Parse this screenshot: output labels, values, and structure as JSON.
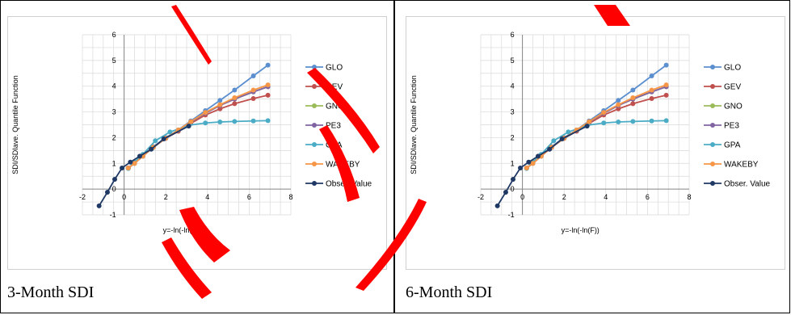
{
  "colors": {
    "GLO": "#5b8fcf",
    "GEV": "#c0504d",
    "GNO": "#9bbb59",
    "PE3": "#8064a2",
    "GPA": "#4bacc6",
    "WAKEBY": "#f79646",
    "Obser. Value": "#1f3864",
    "grid": "#d9d9d9",
    "axis": "#868686",
    "decoration": "#ff0000"
  },
  "chart_data": [
    {
      "type": "line",
      "caption": "3-Month SDI",
      "xlabel": "y=-ln(-ln(F))",
      "ylabel": "SDI/SDIave. Quantile Function",
      "xlim": [
        -2,
        8
      ],
      "ylim": [
        -1,
        6
      ],
      "x_ticks": [
        "-2",
        "0",
        "2",
        "4",
        "6",
        "8"
      ],
      "y_ticks": [
        "-1",
        "0",
        "1",
        "2",
        "3",
        "4",
        "5",
        "6"
      ],
      "grid": true,
      "legend_position": "right",
      "series": [
        {
          "name": "GLO",
          "x": [
            0.2,
            0.5,
            0.9,
            1.4,
            2.0,
            2.6,
            3.2,
            3.9,
            4.6,
            5.3,
            6.2,
            6.9
          ],
          "y": [
            0.82,
            1.02,
            1.3,
            1.65,
            2.0,
            2.3,
            2.65,
            3.05,
            3.45,
            3.85,
            4.4,
            4.82
          ]
        },
        {
          "name": "GEV",
          "x": [
            0.2,
            0.5,
            0.9,
            1.4,
            2.0,
            2.6,
            3.2,
            3.9,
            4.6,
            5.3,
            6.2,
            6.9
          ],
          "y": [
            0.82,
            1.0,
            1.28,
            1.62,
            1.97,
            2.25,
            2.55,
            2.88,
            3.12,
            3.32,
            3.52,
            3.65
          ]
        },
        {
          "name": "GNO",
          "x": [
            0.2,
            0.5,
            0.9,
            1.4,
            2.0,
            2.6,
            3.2,
            3.9,
            4.6,
            5.3,
            6.2,
            6.9
          ],
          "y": [
            0.82,
            1.0,
            1.28,
            1.63,
            1.98,
            2.28,
            2.6,
            2.95,
            3.25,
            3.5,
            3.78,
            3.98
          ]
        },
        {
          "name": "PE3",
          "x": [
            0.2,
            0.5,
            0.9,
            1.4,
            2.0,
            2.6,
            3.2,
            3.9,
            4.6,
            5.3,
            6.2,
            6.9
          ],
          "y": [
            0.82,
            1.0,
            1.28,
            1.63,
            1.98,
            2.28,
            2.6,
            2.95,
            3.25,
            3.5,
            3.78,
            3.98
          ]
        },
        {
          "name": "GPA",
          "x": [
            0.2,
            0.5,
            0.9,
            1.5,
            2.2,
            3.1,
            3.9,
            4.6,
            5.3,
            6.2,
            6.9
          ],
          "y": [
            0.8,
            1.05,
            1.35,
            1.88,
            2.22,
            2.48,
            2.57,
            2.61,
            2.63,
            2.65,
            2.66
          ]
        },
        {
          "name": "WAKEBY",
          "x": [
            0.2,
            0.5,
            0.9,
            1.4,
            2.0,
            2.6,
            3.2,
            3.9,
            4.6,
            5.3,
            6.2,
            6.9
          ],
          "y": [
            0.82,
            1.0,
            1.28,
            1.63,
            1.98,
            2.3,
            2.62,
            2.98,
            3.28,
            3.55,
            3.85,
            4.05
          ]
        },
        {
          "name": "Obser. Value",
          "x": [
            -1.2,
            -0.8,
            -0.45,
            -0.1,
            0.3,
            0.75,
            1.3,
            1.9,
            3.1
          ],
          "y": [
            -0.65,
            -0.12,
            0.38,
            0.82,
            1.05,
            1.28,
            1.55,
            1.95,
            2.45
          ]
        }
      ]
    },
    {
      "type": "line",
      "caption": "6-Month SDI",
      "xlabel": "y=-ln(-ln(F))",
      "ylabel": "SDI/SDIave. Quantile Function",
      "xlim": [
        -2,
        8
      ],
      "ylim": [
        -1,
        6
      ],
      "x_ticks": [
        "-2",
        "0",
        "2",
        "4",
        "6",
        "8"
      ],
      "y_ticks": [
        "-1",
        "0",
        "1",
        "2",
        "3",
        "4",
        "5",
        "6"
      ],
      "grid": true,
      "legend_position": "right",
      "series": [
        {
          "name": "GLO",
          "x": [
            0.2,
            0.5,
            0.9,
            1.4,
            2.0,
            2.6,
            3.2,
            3.9,
            4.6,
            5.3,
            6.2,
            6.9
          ],
          "y": [
            0.82,
            1.02,
            1.3,
            1.65,
            2.0,
            2.3,
            2.65,
            3.05,
            3.45,
            3.85,
            4.4,
            4.82
          ]
        },
        {
          "name": "GEV",
          "x": [
            0.2,
            0.5,
            0.9,
            1.4,
            2.0,
            2.6,
            3.2,
            3.9,
            4.6,
            5.3,
            6.2,
            6.9
          ],
          "y": [
            0.82,
            1.0,
            1.28,
            1.62,
            1.97,
            2.25,
            2.55,
            2.88,
            3.12,
            3.32,
            3.52,
            3.65
          ]
        },
        {
          "name": "GNO",
          "x": [
            0.2,
            0.5,
            0.9,
            1.4,
            2.0,
            2.6,
            3.2,
            3.9,
            4.6,
            5.3,
            6.2,
            6.9
          ],
          "y": [
            0.82,
            1.0,
            1.28,
            1.63,
            1.98,
            2.28,
            2.6,
            2.95,
            3.25,
            3.5,
            3.78,
            3.98
          ]
        },
        {
          "name": "PE3",
          "x": [
            0.2,
            0.5,
            0.9,
            1.4,
            2.0,
            2.6,
            3.2,
            3.9,
            4.6,
            5.3,
            6.2,
            6.9
          ],
          "y": [
            0.82,
            1.0,
            1.28,
            1.63,
            1.98,
            2.28,
            2.6,
            2.95,
            3.25,
            3.5,
            3.78,
            3.98
          ]
        },
        {
          "name": "GPA",
          "x": [
            0.2,
            0.5,
            0.9,
            1.5,
            2.2,
            3.1,
            3.9,
            4.6,
            5.3,
            6.2,
            6.9
          ],
          "y": [
            0.8,
            1.05,
            1.35,
            1.88,
            2.22,
            2.48,
            2.57,
            2.61,
            2.63,
            2.65,
            2.66
          ]
        },
        {
          "name": "WAKEBY",
          "x": [
            0.2,
            0.5,
            0.9,
            1.4,
            2.0,
            2.6,
            3.2,
            3.9,
            4.6,
            5.3,
            6.2,
            6.9
          ],
          "y": [
            0.82,
            1.0,
            1.28,
            1.63,
            1.98,
            2.3,
            2.62,
            2.98,
            3.28,
            3.55,
            3.85,
            4.05
          ]
        },
        {
          "name": "Obser. Value",
          "x": [
            -1.2,
            -0.8,
            -0.45,
            -0.1,
            0.3,
            0.75,
            1.3,
            1.9,
            3.1
          ],
          "y": [
            -0.65,
            -0.12,
            0.38,
            0.82,
            1.05,
            1.28,
            1.55,
            1.95,
            2.45
          ]
        }
      ]
    }
  ]
}
